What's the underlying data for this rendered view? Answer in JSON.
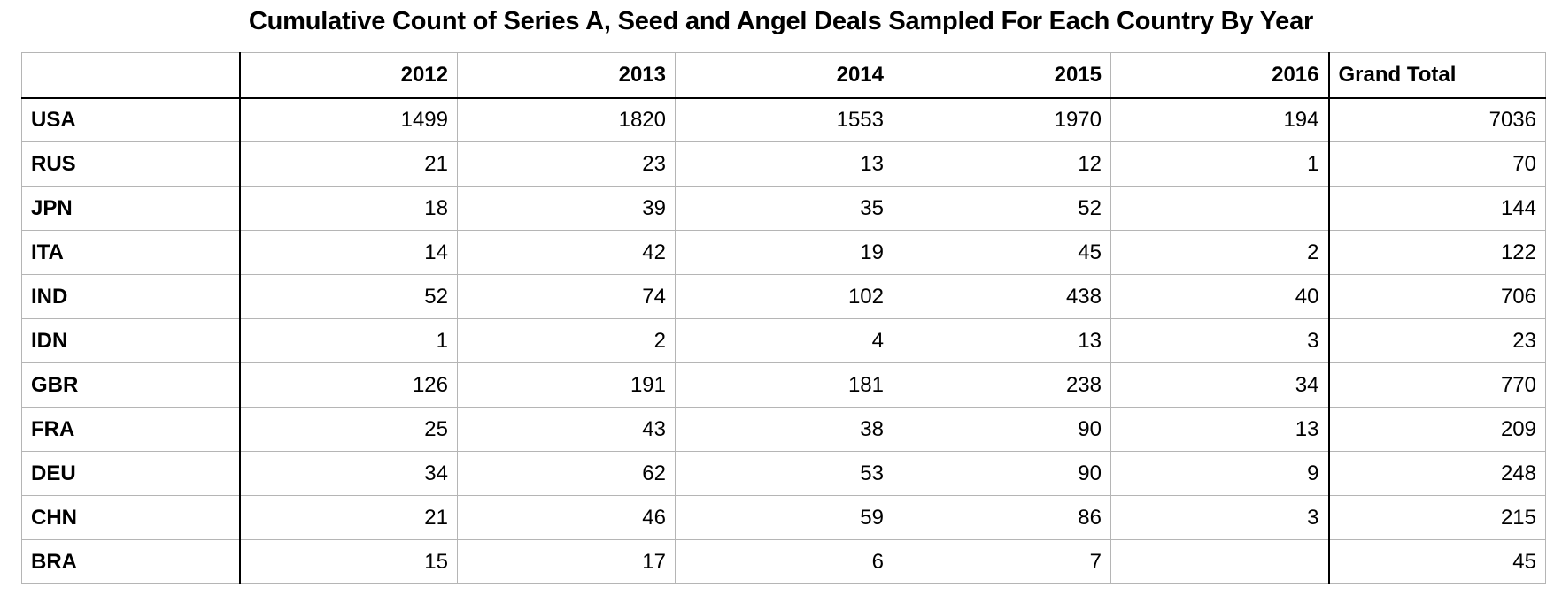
{
  "chart_data": {
    "type": "table",
    "title": "Cumulative Count of Series A, Seed and Angel Deals Sampled For Each Country By Year",
    "corner_label": "",
    "columns": [
      "2012",
      "2013",
      "2014",
      "2015",
      "2016",
      "Grand Total"
    ],
    "rows": [
      {
        "label": "USA",
        "values": [
          "1499",
          "1820",
          "1553",
          "1970",
          "194",
          "7036"
        ]
      },
      {
        "label": "RUS",
        "values": [
          "21",
          "23",
          "13",
          "12",
          "1",
          "70"
        ]
      },
      {
        "label": "JPN",
        "values": [
          "18",
          "39",
          "35",
          "52",
          "",
          "144"
        ]
      },
      {
        "label": "ITA",
        "values": [
          "14",
          "42",
          "19",
          "45",
          "2",
          "122"
        ]
      },
      {
        "label": "IND",
        "values": [
          "52",
          "74",
          "102",
          "438",
          "40",
          "706"
        ]
      },
      {
        "label": "IDN",
        "values": [
          "1",
          "2",
          "4",
          "13",
          "3",
          "23"
        ]
      },
      {
        "label": "GBR",
        "values": [
          "126",
          "191",
          "181",
          "238",
          "34",
          "770"
        ]
      },
      {
        "label": "FRA",
        "values": [
          "25",
          "43",
          "38",
          "90",
          "13",
          "209"
        ]
      },
      {
        "label": "DEU",
        "values": [
          "34",
          "62",
          "53",
          "90",
          "9",
          "248"
        ]
      },
      {
        "label": "CHN",
        "values": [
          "21",
          "46",
          "59",
          "86",
          "3",
          "215"
        ]
      },
      {
        "label": "BRA",
        "values": [
          "15",
          "17",
          "6",
          "7",
          "",
          "45"
        ]
      }
    ]
  }
}
